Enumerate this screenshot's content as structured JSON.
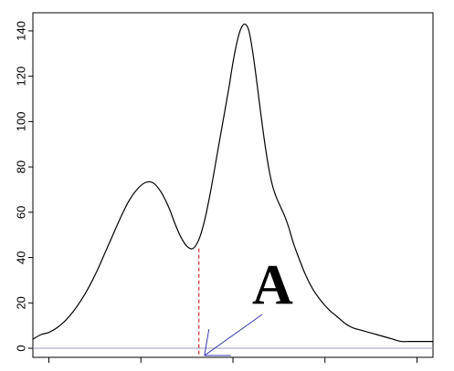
{
  "chart_data": {
    "type": "line",
    "title": "",
    "xlabel": "",
    "ylabel": "",
    "ylim": [
      -4,
      148
    ],
    "yticks": [
      0,
      20,
      40,
      60,
      80,
      100,
      120,
      140
    ],
    "ytick_labels": [
      "0",
      "20",
      "40",
      "60",
      "80",
      "100",
      "120",
      "140"
    ],
    "xlim": [
      0.0,
      1.0
    ],
    "xticks": [
      0.04,
      0.27,
      0.5,
      0.73,
      0.96
    ],
    "xtick_labels": [],
    "baseline": 0,
    "grid": false,
    "legend": "none",
    "series": [
      {
        "values_note": "",
        "x": [
          0.0,
          0.02,
          0.04,
          0.06,
          0.08,
          0.1,
          0.12,
          0.14,
          0.16,
          0.18,
          0.2,
          0.22,
          0.24,
          0.26,
          0.28,
          0.3,
          0.32,
          0.34,
          0.355,
          0.37,
          0.385,
          0.4,
          0.415,
          0.43,
          0.445,
          0.46,
          0.475,
          0.49,
          0.5,
          0.51,
          0.52,
          0.53,
          0.54,
          0.55,
          0.56,
          0.57,
          0.58,
          0.59,
          0.6,
          0.61,
          0.62,
          0.63,
          0.64,
          0.65,
          0.66,
          0.68,
          0.7,
          0.72,
          0.74,
          0.76,
          0.78,
          0.8,
          0.82,
          0.84,
          0.86,
          0.88,
          0.9,
          0.92,
          0.94,
          0.96,
          0.98,
          1.0
        ],
        "y": [
          4,
          6,
          7,
          9,
          12,
          16,
          21,
          27,
          34,
          42,
          50,
          58,
          65,
          70,
          73,
          73,
          69,
          62,
          55,
          49,
          45,
          44,
          48,
          57,
          70,
          85,
          100,
          115,
          126,
          135,
          141,
          143,
          140,
          130,
          117,
          103,
          90,
          79,
          71,
          66,
          62,
          58,
          53,
          47,
          42,
          33,
          26,
          21,
          17,
          14,
          11,
          9,
          8,
          7,
          6,
          5,
          4,
          3,
          3,
          3,
          3,
          3
        ],
        "color": "#000000"
      }
    ],
    "annotations": [
      {
        "label": "A",
        "x": 0.415,
        "y": 44,
        "marker_color": "#cc0000"
      }
    ],
    "colors": {
      "curve": "#000000",
      "baseline": "#9a9ac8",
      "marker_line": "#cc0000",
      "arrow": "#3a3ab0",
      "axis": "#000000"
    }
  }
}
